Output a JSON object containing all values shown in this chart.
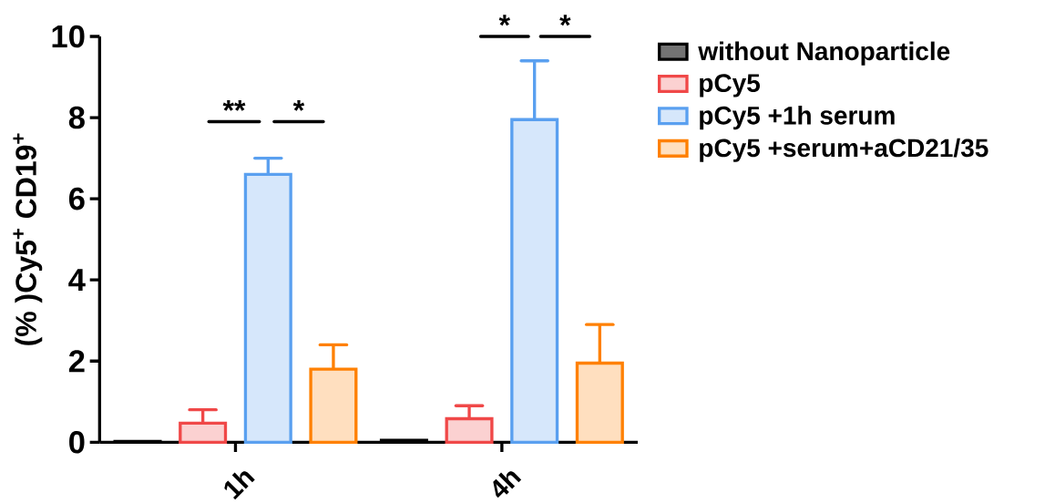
{
  "chart_data": {
    "type": "bar",
    "ylabel": "(% )Cy5$^{+}$ CD19$^{+}$",
    "categories": [
      "1h",
      "4h"
    ],
    "series": [
      {
        "name": "without Nanoparticle",
        "color": "#000000",
        "values": [
          0.02,
          0.05
        ]
      },
      {
        "name": "pCy5",
        "color": "#f04848",
        "values": [
          0.47,
          0.58
        ],
        "errors": [
          [
            0.47,
            0.8
          ],
          [
            0.58,
            0.9
          ]
        ]
      },
      {
        "name": "pCy5 +1h serum",
        "color": "#5aa0f0",
        "values": [
          6.6,
          7.95
        ],
        "errors": [
          [
            6.6,
            7.0
          ],
          [
            7.95,
            9.4
          ]
        ]
      },
      {
        "name": "pCy5 +serum+aCD21/35",
        "color": "#ff8000",
        "values": [
          1.8,
          1.95
        ],
        "errors": [
          [
            1.8,
            2.4
          ],
          [
            1.95,
            2.9
          ]
        ]
      }
    ],
    "ylim": [
      0,
      10
    ],
    "yticks": [
      0,
      2,
      4,
      6,
      8,
      10
    ],
    "legend": "right",
    "grid": false,
    "annotations": [
      "**",
      "*",
      "*",
      "*"
    ]
  }
}
